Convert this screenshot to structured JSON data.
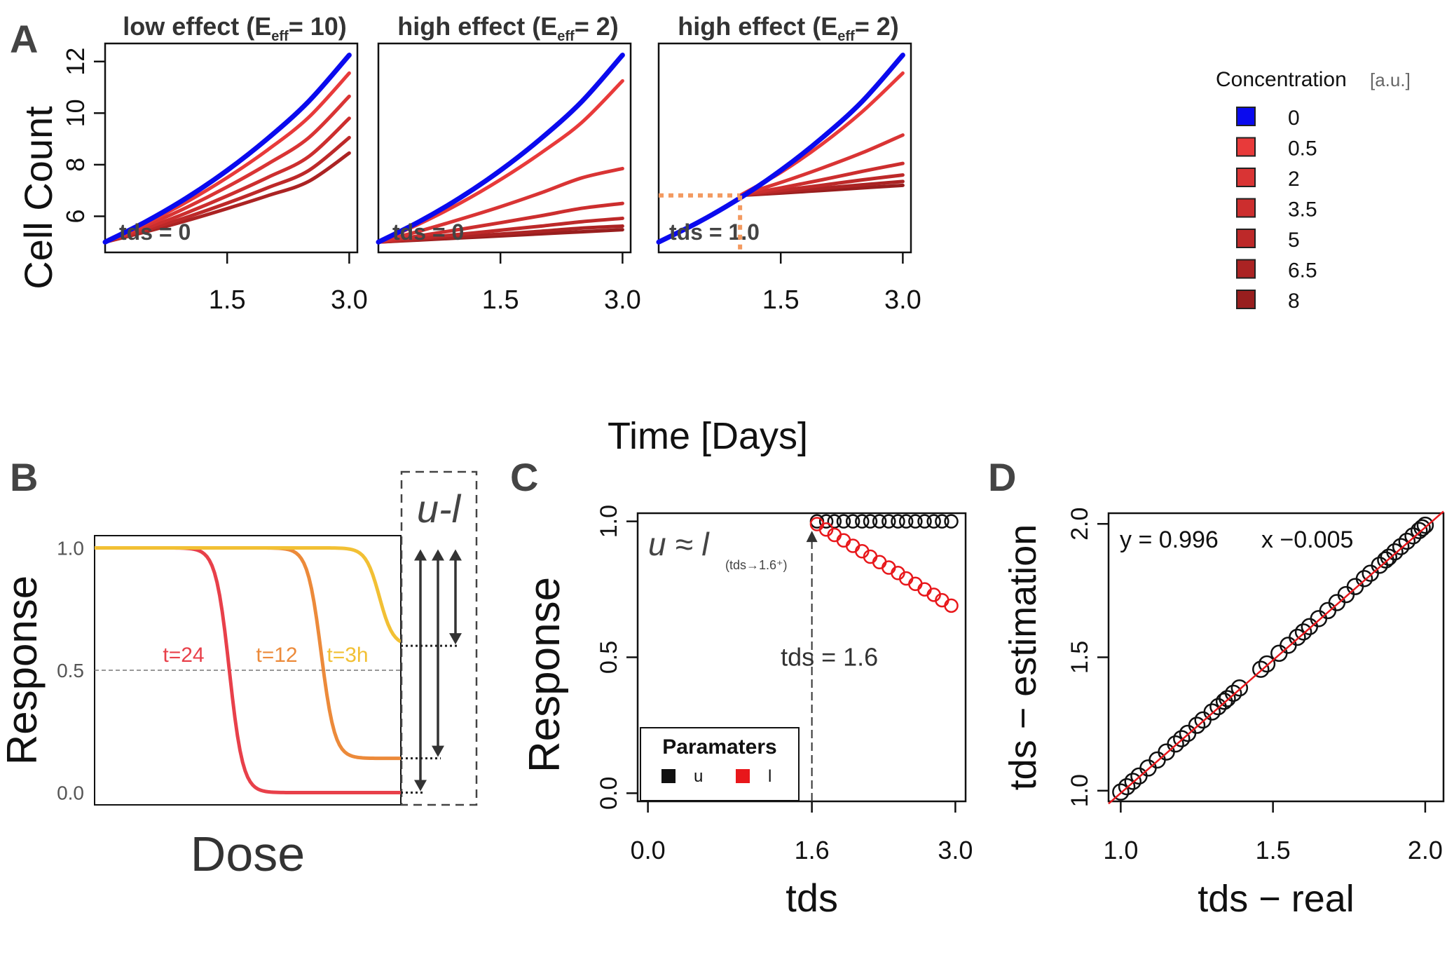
{
  "panel_letters": {
    "a": "A",
    "b": "B",
    "c": "C",
    "d": "D"
  },
  "colors": {
    "control": "#0a0aee",
    "c0_5": "#e83a3a",
    "c2": "#d93434",
    "c3_5": "#cc2e2e",
    "c5": "#bd2929",
    "c6_5": "#ab2323",
    "c8": "#981e1e",
    "guide": "#f39a60",
    "t24": "#e8404a",
    "t12": "#ec8a3a",
    "t3h": "#f2c034",
    "arrow": "#333333",
    "u_points": "#111111",
    "l_points": "#e8171b",
    "fit_line": "#e8171b"
  },
  "panel_a": {
    "shared_ylabel": "Cell Count",
    "shared_xlabel": "Time [Days]",
    "y_ticks": [
      "6",
      "8",
      "10",
      "12"
    ],
    "x_ticks": [
      "1.5",
      "3.0"
    ],
    "legend": {
      "title": "Concentration",
      "unit": "[a.u.]",
      "entries": [
        "0",
        "0.5",
        "2",
        "3.5",
        "5",
        "6.5",
        "8"
      ]
    }
  },
  "chart_data": [
    {
      "type": "line",
      "panel": "A-1",
      "title_prefix": "low effect (E",
      "title_sub": "eff",
      "title_suffix": "= 10)",
      "annotation": "tds = 0",
      "xlabel": "Time [Days]",
      "ylabel": "Cell Count",
      "xlim": [
        0,
        3.1
      ],
      "ylim": [
        4.6,
        12.7
      ],
      "x": [
        0,
        0.5,
        1.0,
        1.5,
        2.0,
        2.5,
        3.0
      ],
      "series": [
        {
          "name": "0",
          "values": [
            5.0,
            5.79,
            6.71,
            7.78,
            9.02,
            10.45,
            12.25
          ]
        },
        {
          "name": "0.5",
          "values": [
            5.0,
            5.72,
            6.55,
            7.5,
            8.58,
            9.83,
            11.55
          ]
        },
        {
          "name": "2",
          "values": [
            5.0,
            5.63,
            6.34,
            7.14,
            8.03,
            9.04,
            10.65
          ]
        },
        {
          "name": "3.5",
          "values": [
            5.0,
            5.53,
            6.13,
            6.79,
            7.51,
            8.31,
            9.8
          ]
        },
        {
          "name": "5",
          "values": [
            5.0,
            5.46,
            5.96,
            6.51,
            7.11,
            7.77,
            9.05
          ]
        },
        {
          "name": "6.5",
          "values": [
            5.0,
            5.4,
            5.83,
            6.3,
            6.8,
            7.35,
            8.45
          ]
        }
      ],
      "tds": 0
    },
    {
      "type": "line",
      "panel": "A-2",
      "title_prefix": "high effect (E",
      "title_sub": "eff",
      "title_suffix": "= 2)",
      "annotation": "tds = 0",
      "xlabel": "Time [Days]",
      "ylabel": "Cell Count",
      "xlim": [
        0,
        3.1
      ],
      "ylim": [
        4.6,
        12.7
      ],
      "x": [
        0,
        0.5,
        1.0,
        1.5,
        2.0,
        2.5,
        3.0
      ],
      "series": [
        {
          "name": "0",
          "values": [
            5.0,
            5.79,
            6.71,
            7.78,
            9.02,
            10.45,
            12.25
          ]
        },
        {
          "name": "0.5",
          "values": [
            5.0,
            5.7,
            6.5,
            7.42,
            8.46,
            9.64,
            11.25
          ]
        },
        {
          "name": "2",
          "values": [
            5.0,
            5.42,
            5.88,
            6.37,
            6.91,
            7.49,
            7.85
          ]
        },
        {
          "name": "3.5",
          "values": [
            5.0,
            5.24,
            5.49,
            5.75,
            6.02,
            6.31,
            6.5
          ]
        },
        {
          "name": "5",
          "values": [
            5.0,
            5.15,
            5.3,
            5.46,
            5.62,
            5.79,
            5.92
          ]
        },
        {
          "name": "6.5",
          "values": [
            5.0,
            5.1,
            5.21,
            5.31,
            5.42,
            5.54,
            5.62
          ]
        },
        {
          "name": "8",
          "values": [
            5.0,
            5.08,
            5.16,
            5.24,
            5.32,
            5.4,
            5.48
          ]
        }
      ],
      "tds": 0
    },
    {
      "type": "line",
      "panel": "A-3",
      "title_prefix": "high effect (E",
      "title_sub": "eff",
      "title_suffix": "= 2)",
      "annotation": "tds = 1.0",
      "xlabel": "Time [Days]",
      "ylabel": "Cell Count",
      "xlim": [
        0,
        3.1
      ],
      "ylim": [
        4.6,
        12.7
      ],
      "x": [
        0,
        0.5,
        1.0,
        1.5,
        2.0,
        2.5,
        3.0
      ],
      "x_after_tds": [
        1.0,
        1.5,
        2.0,
        2.5,
        3.0
      ],
      "series": [
        {
          "name": "0",
          "values": [
            5.0,
            5.79,
            6.71,
            7.78,
            9.02,
            10.45,
            12.25
          ]
        },
        {
          "name": "0.5",
          "values_after_tds": [
            6.81,
            7.7,
            8.78,
            10.05,
            11.55
          ]
        },
        {
          "name": "2",
          "values_after_tds": [
            6.81,
            7.31,
            7.86,
            8.46,
            9.15
          ]
        },
        {
          "name": "3.5",
          "values_after_tds": [
            6.81,
            7.1,
            7.41,
            7.74,
            8.05
          ]
        },
        {
          "name": "5",
          "values_after_tds": [
            6.81,
            7.0,
            7.2,
            7.41,
            7.6
          ]
        },
        {
          "name": "6.5",
          "values_after_tds": [
            6.81,
            6.94,
            7.08,
            7.22,
            7.35
          ]
        },
        {
          "name": "8",
          "values_after_tds": [
            6.81,
            6.9,
            7.0,
            7.1,
            7.2
          ]
        }
      ],
      "tds": 1.0,
      "tds_cell_count": 6.81
    },
    {
      "type": "line",
      "panel": "B",
      "xlabel": "Dose",
      "ylabel": "Response",
      "y_ticks": [
        "0.0",
        "0.5",
        "1.0"
      ],
      "ylim": [
        -0.05,
        1.05
      ],
      "bracket_label": "u-l",
      "series": [
        {
          "name": "t=24",
          "upper": 1.0,
          "lower": 0.0,
          "midpoint_fraction": 0.44
        },
        {
          "name": "t=12",
          "upper": 1.0,
          "lower": 0.14,
          "midpoint_fraction": 0.74
        },
        {
          "name": "t=3h",
          "upper": 1.0,
          "lower": 0.6,
          "midpoint_fraction": 0.93
        }
      ],
      "reference_line": 0.5
    },
    {
      "type": "scatter",
      "panel": "C",
      "xlabel": "tds",
      "ylabel": "Response",
      "x_ticks": [
        "0.0",
        "1.6",
        "3.0"
      ],
      "y_ticks": [
        "0.0",
        "0.5",
        "1.0"
      ],
      "xlim": [
        -0.1,
        3.1
      ],
      "ylim": [
        -0.03,
        1.03
      ],
      "annotation_eq_left": "u ≈ l",
      "annotation_eq_sub": "(tds→1.6⁺)",
      "annotation_tds": "tds = 1.6",
      "legend_title": "Paramaters",
      "legend_entries": [
        "u",
        "l"
      ],
      "series": [
        {
          "name": "u",
          "x": [
            1.65,
            1.74,
            1.82,
            1.91,
            2.0,
            2.09,
            2.17,
            2.26,
            2.35,
            2.44,
            2.52,
            2.61,
            2.7,
            2.79,
            2.87,
            2.96
          ],
          "values": [
            1,
            1,
            1,
            1,
            1,
            1,
            1,
            1,
            1,
            1,
            1,
            1,
            1,
            1,
            1,
            1
          ]
        },
        {
          "name": "l",
          "x": [
            1.65,
            1.74,
            1.82,
            1.91,
            2.0,
            2.09,
            2.17,
            2.26,
            2.35,
            2.44,
            2.52,
            2.61,
            2.7,
            2.79,
            2.87,
            2.96
          ],
          "values": [
            0.99,
            0.97,
            0.95,
            0.93,
            0.91,
            0.89,
            0.87,
            0.85,
            0.83,
            0.81,
            0.79,
            0.77,
            0.75,
            0.73,
            0.71,
            0.69
          ]
        }
      ]
    },
    {
      "type": "scatter",
      "panel": "D",
      "xlabel": "tds − real",
      "ylabel": "tds − estimation",
      "x_ticks": [
        "1.0",
        "1.5",
        "2.0"
      ],
      "y_ticks": [
        "1.0",
        "1.5",
        "2.0"
      ],
      "xlim": [
        0.96,
        2.06
      ],
      "ylim": [
        0.96,
        2.04
      ],
      "fit_text_left": "y = 0.996",
      "fit_text_right": "x −0.005",
      "fit": {
        "slope": 0.996,
        "intercept": -0.005
      },
      "x": [
        1.0,
        1.02,
        1.04,
        1.06,
        1.09,
        1.12,
        1.15,
        1.18,
        1.2,
        1.22,
        1.25,
        1.27,
        1.3,
        1.32,
        1.34,
        1.35,
        1.37,
        1.39,
        1.46,
        1.48,
        1.52,
        1.55,
        1.58,
        1.6,
        1.62,
        1.65,
        1.68,
        1.71,
        1.74,
        1.77,
        1.8,
        1.82,
        1.85,
        1.87,
        1.88,
        1.9,
        1.92,
        1.94,
        1.96,
        1.98,
        1.99,
        2.0
      ],
      "values": [
        0.995,
        1.015,
        1.035,
        1.055,
        1.085,
        1.115,
        1.145,
        1.175,
        1.195,
        1.215,
        1.245,
        1.265,
        1.295,
        1.315,
        1.335,
        1.345,
        1.365,
        1.385,
        1.455,
        1.475,
        1.515,
        1.545,
        1.575,
        1.595,
        1.615,
        1.645,
        1.675,
        1.705,
        1.735,
        1.765,
        1.795,
        1.815,
        1.845,
        1.865,
        1.875,
        1.895,
        1.915,
        1.935,
        1.955,
        1.975,
        1.985,
        1.995
      ]
    }
  ]
}
